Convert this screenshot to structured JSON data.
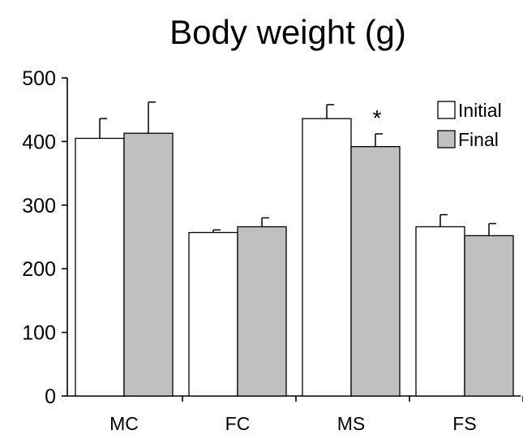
{
  "chart_data": {
    "type": "bar",
    "title": "Body weight (g)",
    "xlabel": "",
    "ylabel": "",
    "categories": [
      "MC",
      "FC",
      "MS",
      "FS"
    ],
    "ylim": [
      0,
      500
    ],
    "yticks": [
      "0",
      "100",
      "200",
      "300",
      "400",
      "500"
    ],
    "series": [
      {
        "name": "Initial",
        "values": [
          405,
          257,
          436,
          266
        ],
        "errors": [
          31,
          4,
          22,
          19
        ],
        "color": "#ffffff"
      },
      {
        "name": "Final",
        "values": [
          413,
          266,
          392,
          252
        ],
        "errors": [
          49,
          14,
          20,
          19
        ],
        "color": "#c0c0c0"
      }
    ],
    "annotations": [
      {
        "text": "*",
        "category": "MS",
        "series": "Final"
      }
    ],
    "legend": "top-right",
    "grid": false
  }
}
